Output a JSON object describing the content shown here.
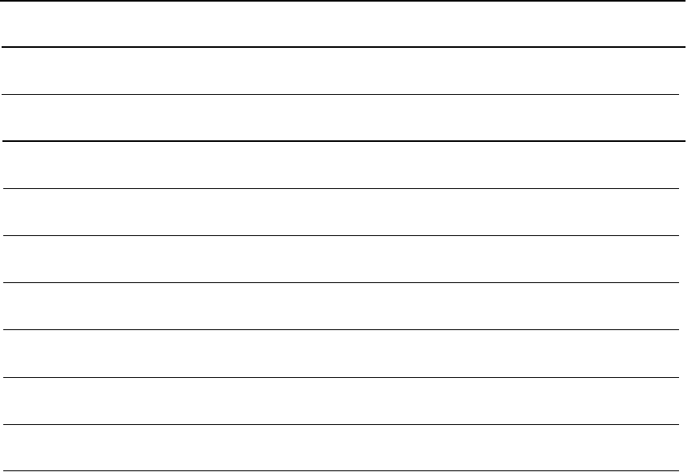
{
  "table": {
    "rows": [
      "",
      "",
      "",
      "",
      "",
      "",
      "",
      "",
      "",
      ""
    ]
  },
  "colors": {
    "line": "#000000",
    "background": "#ffffff"
  }
}
